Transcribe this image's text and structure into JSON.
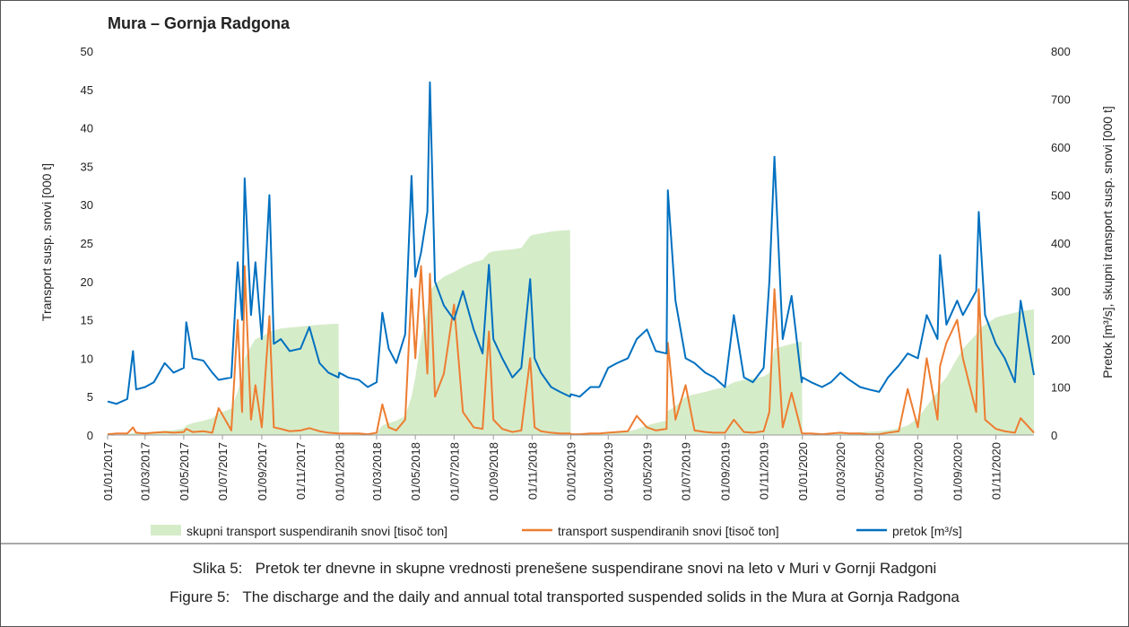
{
  "chart_data": {
    "type": "line",
    "title": "Mura – Gornja Radgona",
    "y_label": "Transport susp. snovi [000 t]",
    "y2_label": "Pretok [m³/s], skupni transport susp. snovi [000 t]",
    "xlim": [
      "01/01/2017",
      "31/12/2020"
    ],
    "xticks": [
      "01/01/2017",
      "01/03/2017",
      "01/05/2017",
      "01/07/2017",
      "01/09/2017",
      "01/11/2017",
      "01/01/2018",
      "01/03/2018",
      "01/05/2018",
      "01/07/2018",
      "01/09/2018",
      "01/11/2018",
      "01/01/2019",
      "01/03/2019",
      "01/05/2019",
      "01/07/2019",
      "01/09/2019",
      "01/11/2019",
      "01/01/2020",
      "01/03/2020",
      "01/05/2020",
      "01/07/2020",
      "01/09/2020",
      "01/11/2020"
    ],
    "ylim": [
      0,
      50
    ],
    "yticks": [
      0,
      5,
      10,
      15,
      20,
      25,
      30,
      35,
      40,
      45,
      50
    ],
    "y2lim": [
      0,
      800
    ],
    "y2ticks": [
      0,
      100,
      200,
      300,
      400,
      500,
      600,
      700,
      800
    ],
    "grid": false,
    "x": [
      "01/01/2017",
      "15/01/2017",
      "01/02/2017",
      "10/02/2017",
      "15/02/2017",
      "01/03/2017",
      "15/03/2017",
      "01/04/2017",
      "15/04/2017",
      "01/05/2017",
      "05/05/2017",
      "15/05/2017",
      "01/06/2017",
      "15/06/2017",
      "25/06/2017",
      "15/07/2017",
      "25/07/2017",
      "01/08/2017",
      "05/08/2017",
      "15/08/2017",
      "22/08/2017",
      "01/09/2017",
      "13/09/2017",
      "20/09/2017",
      "01/10/2017",
      "15/10/2017",
      "01/11/2017",
      "15/11/2017",
      "01/12/2017",
      "15/12/2017",
      "31/12/2017",
      "01/01/2018",
      "15/01/2018",
      "01/02/2018",
      "15/02/2018",
      "01/03/2018",
      "10/03/2018",
      "20/03/2018",
      "01/04/2018",
      "15/04/2018",
      "25/04/2018",
      "01/05/2018",
      "10/05/2018",
      "20/05/2018",
      "24/05/2018",
      "01/06/2018",
      "15/06/2018",
      "01/07/2018",
      "15/07/2018",
      "01/08/2018",
      "15/08/2018",
      "25/08/2018",
      "01/09/2018",
      "15/09/2018",
      "01/10/2018",
      "15/10/2018",
      "29/10/2018",
      "05/11/2018",
      "15/11/2018",
      "01/12/2018",
      "15/12/2018",
      "31/12/2018",
      "01/01/2019",
      "15/01/2019",
      "01/02/2019",
      "15/02/2019",
      "01/03/2019",
      "15/03/2019",
      "01/04/2019",
      "15/04/2019",
      "01/05/2019",
      "15/05/2019",
      "01/06/2019",
      "03/06/2019",
      "15/06/2019",
      "01/07/2019",
      "15/07/2019",
      "01/08/2019",
      "15/08/2019",
      "01/09/2019",
      "15/09/2019",
      "01/10/2019",
      "15/10/2019",
      "01/11/2019",
      "10/11/2019",
      "18/11/2019",
      "01/12/2019",
      "15/12/2019",
      "31/12/2019",
      "01/01/2020",
      "15/01/2020",
      "01/02/2020",
      "15/02/2020",
      "01/03/2020",
      "15/03/2020",
      "01/04/2020",
      "15/04/2020",
      "01/05/2020",
      "15/05/2020",
      "01/06/2020",
      "15/06/2020",
      "01/07/2020",
      "15/07/2020",
      "01/08/2020",
      "05/08/2020",
      "15/08/2020",
      "01/09/2020",
      "10/09/2020",
      "01/10/2020",
      "05/10/2020",
      "15/10/2020",
      "01/11/2020",
      "15/11/2020",
      "01/12/2020",
      "10/12/2020",
      "31/12/2020"
    ],
    "series": [
      {
        "name": "skupni transport suspendiranih snovi [tisoč ton]",
        "kind": "area",
        "axis": "y2",
        "color": "#d5ecc9",
        "values": [
          0,
          1,
          2,
          4,
          5,
          6,
          7,
          9,
          10,
          14,
          20,
          25,
          30,
          35,
          45,
          55,
          90,
          120,
          160,
          185,
          200,
          205,
          215,
          218,
          222,
          224,
          226,
          228,
          230,
          231,
          232,
          0,
          1,
          2,
          3,
          5,
          20,
          25,
          30,
          40,
          80,
          120,
          200,
          260,
          300,
          315,
          330,
          340,
          350,
          360,
          365,
          380,
          383,
          385,
          387,
          390,
          415,
          418,
          420,
          424,
          426,
          427,
          0,
          1,
          2,
          3,
          4,
          6,
          8,
          12,
          20,
          25,
          30,
          50,
          60,
          80,
          85,
          90,
          95,
          100,
          110,
          115,
          118,
          122,
          130,
          180,
          185,
          190,
          195,
          0,
          1,
          2,
          3,
          4,
          5,
          6,
          7,
          8,
          10,
          14,
          20,
          35,
          60,
          90,
          105,
          120,
          160,
          180,
          210,
          220,
          230,
          245,
          250,
          255,
          258,
          262
        ]
      },
      {
        "name": "transport suspendiranih snovi [tisoč ton]",
        "kind": "line",
        "axis": "y",
        "color": "#ed7d31",
        "values": [
          0.1,
          0.2,
          0.2,
          1.0,
          0.3,
          0.2,
          0.3,
          0.4,
          0.3,
          0.4,
          0.8,
          0.4,
          0.5,
          0.3,
          3.5,
          0.6,
          15,
          3,
          22,
          2,
          6.5,
          1,
          15.5,
          1,
          0.8,
          0.5,
          0.6,
          0.9,
          0.5,
          0.3,
          0.2,
          0.2,
          0.2,
          0.2,
          0.1,
          0.3,
          4,
          1,
          0.6,
          2,
          19,
          10,
          22,
          8,
          21,
          5,
          8,
          17,
          3,
          1,
          0.8,
          13.5,
          2,
          0.8,
          0.4,
          0.6,
          10,
          1,
          0.5,
          0.3,
          0.2,
          0.2,
          0.1,
          0.1,
          0.2,
          0.2,
          0.3,
          0.4,
          0.5,
          2.5,
          1,
          0.6,
          0.8,
          12,
          2,
          6.5,
          0.6,
          0.4,
          0.3,
          0.3,
          2,
          0.4,
          0.3,
          0.5,
          3,
          19,
          1,
          5.5,
          0.3,
          0.2,
          0.2,
          0.1,
          0.2,
          0.3,
          0.2,
          0.2,
          0.1,
          0.1,
          0.3,
          0.5,
          6,
          1,
          10,
          2,
          9,
          12,
          15,
          10,
          3,
          19,
          2,
          0.8,
          0.5,
          0.3,
          2.2,
          0.3
        ]
      },
      {
        "name": "pretok  [m³/s]",
        "kind": "line",
        "axis": "y2",
        "color": "#0070c0",
        "values": [
          70,
          65,
          75,
          175,
          95,
          100,
          110,
          150,
          130,
          140,
          235,
          160,
          155,
          130,
          115,
          120,
          360,
          240,
          535,
          250,
          360,
          200,
          500,
          190,
          200,
          175,
          180,
          225,
          150,
          130,
          120,
          130,
          120,
          115,
          100,
          110,
          255,
          180,
          150,
          210,
          540,
          330,
          380,
          465,
          735,
          320,
          270,
          240,
          300,
          220,
          170,
          355,
          200,
          160,
          120,
          140,
          325,
          160,
          130,
          100,
          90,
          80,
          85,
          80,
          100,
          100,
          140,
          150,
          160,
          200,
          220,
          175,
          170,
          510,
          280,
          160,
          150,
          130,
          120,
          100,
          250,
          120,
          110,
          140,
          320,
          580,
          200,
          290,
          110,
          120,
          110,
          100,
          110,
          130,
          115,
          100,
          95,
          90,
          120,
          145,
          170,
          160,
          250,
          200,
          375,
          230,
          280,
          250,
          300,
          465,
          250,
          190,
          160,
          110,
          280,
          125
        ]
      }
    ]
  },
  "captions": [
    {
      "label": "Slika 5:",
      "text": "Pretok ter dnevne in skupne vrednosti prenešene suspendirane snovi na leto v Muri v Gornji Radgoni"
    },
    {
      "label": "Figure 5:",
      "text": "The discharge and the daily and annual total transported suspended solids in the Mura at Gornja Radgona"
    }
  ]
}
